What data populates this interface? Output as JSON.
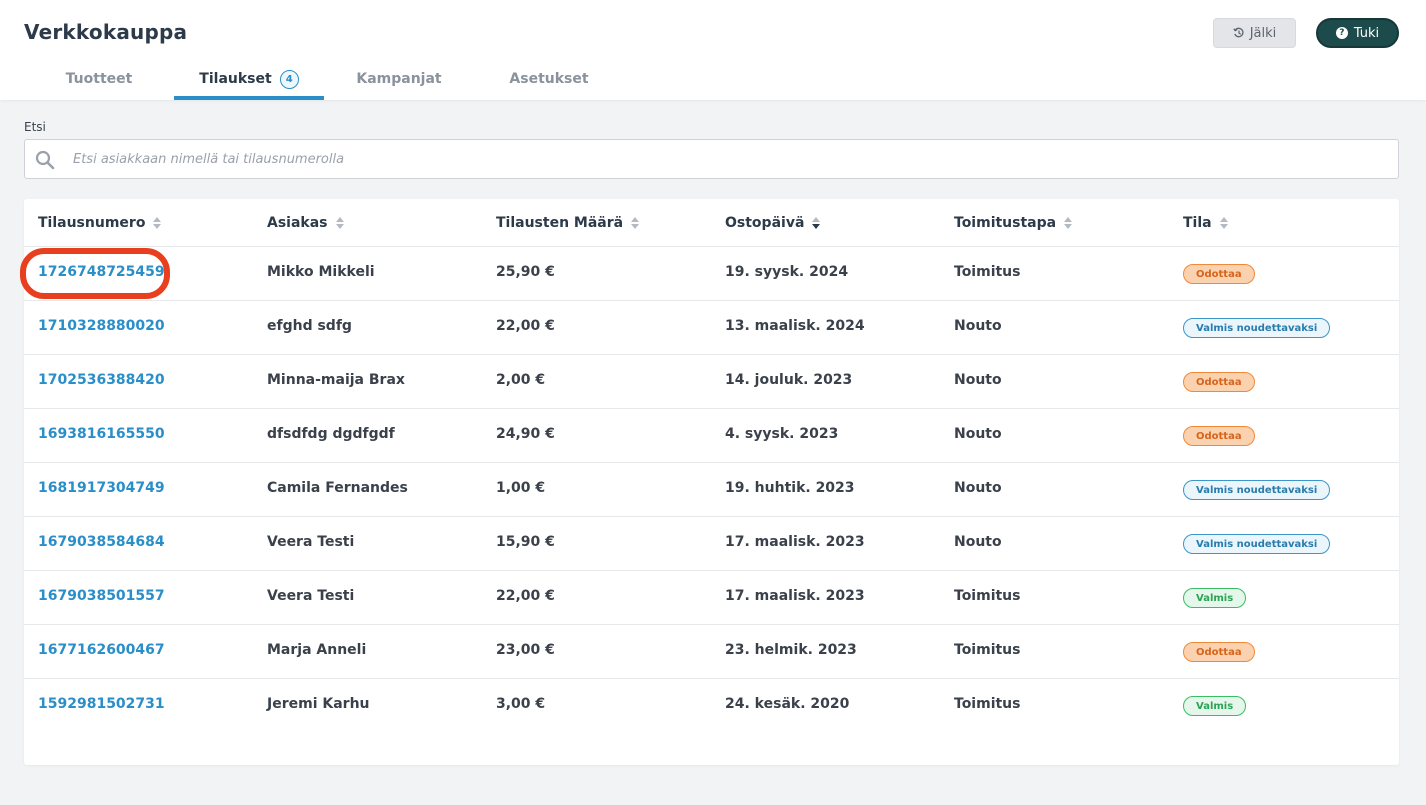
{
  "app": {
    "title": "Verkkokauppa"
  },
  "header": {
    "history_label": "Jälki",
    "support_label": "Tuki"
  },
  "tabs": [
    {
      "label": "Tuotteet",
      "active": false
    },
    {
      "label": "Tilaukset",
      "active": true,
      "badge": "4"
    },
    {
      "label": "Kampanjat",
      "active": false
    },
    {
      "label": "Asetukset",
      "active": false
    }
  ],
  "search": {
    "label": "Etsi",
    "placeholder": "Etsi asiakkaan nimellä tai tilausnumerolla",
    "value": ""
  },
  "table": {
    "columns": [
      "Tilausnumero",
      "Asiakas",
      "Tilausten Määrä",
      "Ostopäivä",
      "Toimitustapa",
      "Tila"
    ],
    "sorted_column": "Ostopäivä",
    "sort_direction": "descending",
    "rows": [
      {
        "order": "1726748725459",
        "customer": "Mikko Mikkeli",
        "amount": "25,90 €",
        "date": "19. syysk. 2024",
        "delivery": "Toimitus",
        "status": "Odottaa",
        "status_type": "pending"
      },
      {
        "order": "1710328880020",
        "customer": "efghd sdfg",
        "amount": "22,00 €",
        "date": "13. maalisk. 2024",
        "delivery": "Nouto",
        "status": "Valmis noudettavaksi",
        "status_type": "pickup"
      },
      {
        "order": "1702536388420",
        "customer": "Minna-maija Brax",
        "amount": "2,00 €",
        "date": "14. jouluk. 2023",
        "delivery": "Nouto",
        "status": "Odottaa",
        "status_type": "pending"
      },
      {
        "order": "1693816165550",
        "customer": "dfsdfdg dgdfgdf",
        "amount": "24,90 €",
        "date": "4. syysk. 2023",
        "delivery": "Nouto",
        "status": "Odottaa",
        "status_type": "pending"
      },
      {
        "order": "1681917304749",
        "customer": "Camila Fernandes",
        "amount": "1,00 €",
        "date": "19. huhtik. 2023",
        "delivery": "Nouto",
        "status": "Valmis noudettavaksi",
        "status_type": "pickup"
      },
      {
        "order": "1679038584684",
        "customer": "Veera Testi",
        "amount": "15,90 €",
        "date": "17. maalisk. 2023",
        "delivery": "Nouto",
        "status": "Valmis noudettavaksi",
        "status_type": "pickup"
      },
      {
        "order": "1679038501557",
        "customer": "Veera Testi",
        "amount": "22,00 €",
        "date": "17. maalisk. 2023",
        "delivery": "Toimitus",
        "status": "Valmis",
        "status_type": "done"
      },
      {
        "order": "1677162600467",
        "customer": "Marja Anneli",
        "amount": "23,00 €",
        "date": "23. helmik. 2023",
        "delivery": "Toimitus",
        "status": "Odottaa",
        "status_type": "pending"
      },
      {
        "order": "1592981502731",
        "customer": "Jeremi Karhu",
        "amount": "3,00 €",
        "date": "24. kesäk. 2020",
        "delivery": "Toimitus",
        "status": "Valmis",
        "status_type": "done"
      }
    ]
  },
  "colors": {
    "accent": "#2a8ec8",
    "support_button": "#1d4a4a",
    "highlight": "#e8401f",
    "pending": "#ef8a3a",
    "pickup": "#3d95c8",
    "done": "#3bbd66"
  }
}
